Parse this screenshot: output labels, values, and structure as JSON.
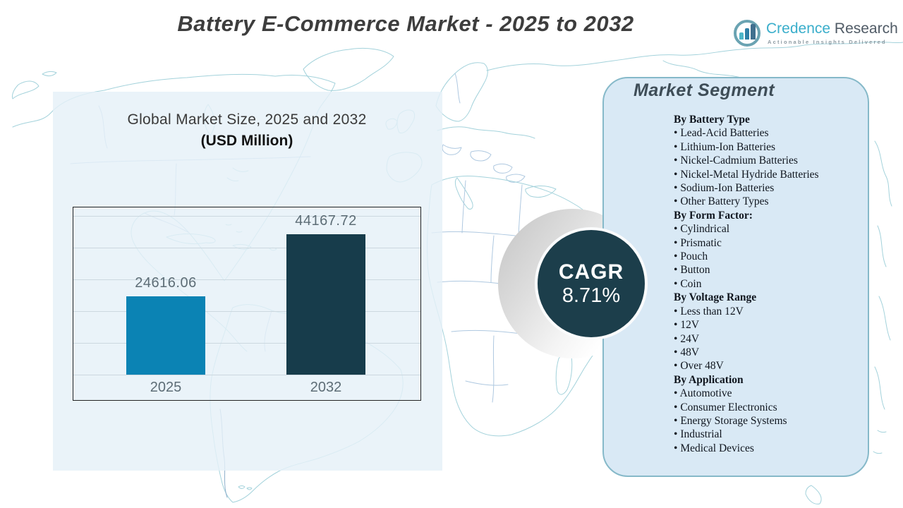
{
  "title": "Battery E-Commerce Market - 2025 to 2032",
  "logo": {
    "brand_primary": "Credence",
    "brand_secondary": "Research",
    "tagline": "Actionable Insights Delivered"
  },
  "chart_data": {
    "type": "bar",
    "title": "Global Market Size, 2025 and 2032",
    "subtitle": "(USD Million)",
    "categories": [
      "2025",
      "2032"
    ],
    "values": [
      24616.06,
      44167.72
    ],
    "bar_colors": [
      "#0b83b4",
      "#173c4b"
    ],
    "xlabel": "",
    "ylabel": "USD Million",
    "ylim": [
      0,
      50000
    ],
    "gridline_step": 10000,
    "grid": true,
    "legend": false
  },
  "cagr": {
    "label": "CAGR",
    "value": "8.71%"
  },
  "market_segment": {
    "heading": "Market Segment",
    "groups": [
      {
        "title": "By Battery Type",
        "items": [
          "Lead-Acid Batteries",
          "Lithium-Ion Batteries",
          "Nickel-Cadmium Batteries",
          "Nickel-Metal Hydride Batteries",
          "Sodium-Ion Batteries",
          "Other Battery Types"
        ]
      },
      {
        "title": "By Form Factor:",
        "items": [
          "Cylindrical",
          "Prismatic",
          "Pouch",
          "Button",
          "Coin"
        ]
      },
      {
        "title": "By Voltage Range",
        "items": [
          "Less than 12V",
          "12V",
          "24V",
          "48V",
          "Over 48V"
        ]
      },
      {
        "title": "By Application",
        "items": [
          "Automotive",
          "Consumer Electronics",
          "Energy Storage Systems",
          "Industrial",
          "Medical Devices"
        ]
      }
    ]
  },
  "colors": {
    "bar_2025": "#0b83b4",
    "bar_2032": "#173c4b",
    "cagr_circle": "#1c3e4b",
    "left_panel_bg": "#e5f0f8",
    "right_panel_bg": "#d9e9f5",
    "right_panel_border": "#86b9c9",
    "map_line": "#a3d2db",
    "map_line_inner": "#aec8e0",
    "brand_teal": "#3aaecb",
    "brand_gray": "#505b66"
  }
}
